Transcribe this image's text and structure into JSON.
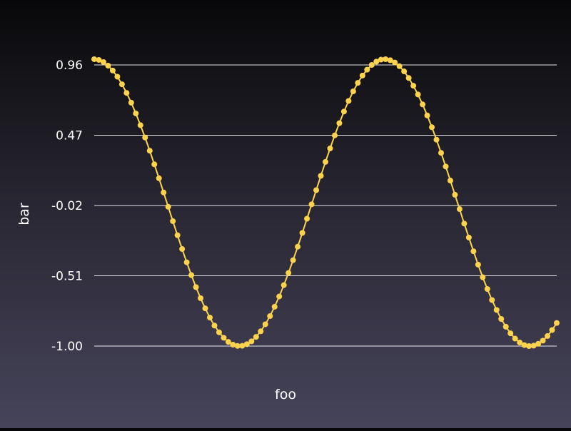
{
  "chart_data": {
    "type": "line",
    "xlabel": "foo",
    "ylabel": "bar",
    "y_ticks": [
      "0.96",
      "0.47",
      "-0.02",
      "-0.51",
      "-1.00"
    ],
    "y_tick_values": [
      0.96,
      0.47,
      -0.02,
      -0.51,
      -1.0
    ],
    "ylim": [
      -1.0,
      0.96
    ],
    "xlim": [
      0,
      10
    ],
    "grid": "horizontal",
    "legend": "none",
    "series": [
      {
        "color": "#fdd34d",
        "marker": "circle",
        "x": [
          0.0,
          0.1,
          0.2,
          0.3,
          0.4,
          0.5,
          0.6,
          0.7,
          0.8,
          0.9,
          1.0,
          1.1,
          1.2,
          1.3,
          1.4,
          1.5,
          1.6,
          1.7,
          1.8,
          1.9,
          2.0,
          2.1,
          2.2,
          2.3,
          2.4,
          2.5,
          2.6,
          2.7,
          2.8,
          2.9,
          3.0,
          3.1,
          3.2,
          3.3,
          3.4,
          3.5,
          3.6,
          3.7,
          3.8,
          3.9,
          4.0,
          4.1,
          4.2,
          4.3,
          4.4,
          4.5,
          4.6,
          4.7,
          4.8,
          4.9,
          5.0,
          5.1,
          5.2,
          5.3,
          5.4,
          5.5,
          5.6,
          5.7,
          5.8,
          5.9,
          6.0,
          6.1,
          6.2,
          6.3,
          6.4,
          6.5,
          6.6,
          6.7,
          6.8,
          6.9,
          7.0,
          7.1,
          7.2,
          7.3,
          7.4,
          7.5,
          7.6,
          7.7,
          7.8,
          7.9,
          8.0,
          8.1,
          8.2,
          8.3,
          8.4,
          8.5,
          8.6,
          8.7,
          8.8,
          8.9,
          9.0,
          9.1,
          9.2,
          9.3,
          9.4,
          9.5,
          9.6,
          9.7,
          9.8,
          9.9,
          10.0
        ],
        "y": [
          1.0,
          0.995,
          0.98,
          0.955,
          0.921,
          0.878,
          0.825,
          0.765,
          0.697,
          0.622,
          0.54,
          0.454,
          0.362,
          0.267,
          0.17,
          0.071,
          -0.029,
          -0.129,
          -0.227,
          -0.323,
          -0.416,
          -0.505,
          -0.589,
          -0.666,
          -0.737,
          -0.801,
          -0.857,
          -0.904,
          -0.942,
          -0.971,
          -0.99,
          -0.999,
          -0.998,
          -0.987,
          -0.967,
          -0.936,
          -0.897,
          -0.848,
          -0.791,
          -0.726,
          -0.654,
          -0.575,
          -0.49,
          -0.401,
          -0.307,
          -0.211,
          -0.112,
          -0.012,
          0.087,
          0.187,
          0.284,
          0.378,
          0.469,
          0.554,
          0.635,
          0.709,
          0.776,
          0.835,
          0.886,
          0.927,
          0.96,
          0.983,
          0.997,
          1.0,
          0.993,
          0.977,
          0.951,
          0.915,
          0.869,
          0.815,
          0.754,
          0.685,
          0.608,
          0.526,
          0.439,
          0.347,
          0.252,
          0.154,
          0.055,
          -0.045,
          -0.146,
          -0.243,
          -0.339,
          -0.432,
          -0.52,
          -0.602,
          -0.679,
          -0.748,
          -0.811,
          -0.865,
          -0.911,
          -0.948,
          -0.975,
          -0.993,
          -1.0,
          -0.997,
          -0.984,
          -0.962,
          -0.93,
          -0.888,
          -0.839
        ]
      }
    ]
  }
}
